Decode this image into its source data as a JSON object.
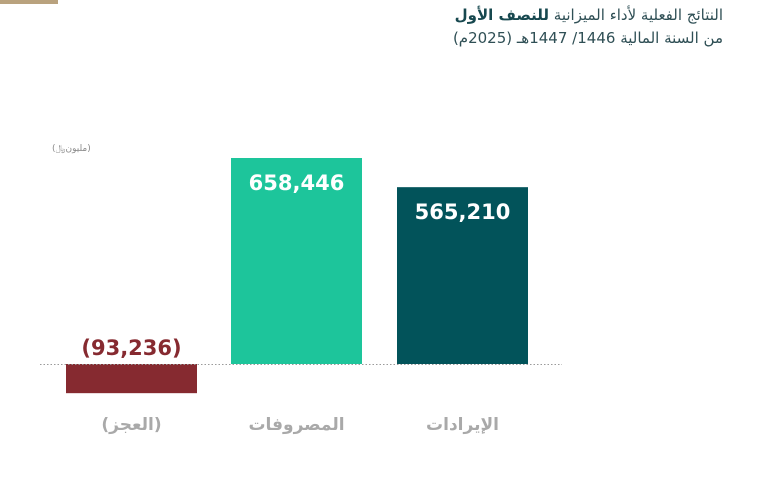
{
  "header": {
    "title_regular": "النتائج الفعلية لأداء الميزانية ",
    "title_bold": "للنصف الأول",
    "subtitle": "من السنة المالية 1446/ 1447هـ (2025م)"
  },
  "unit_label": "(مليون﷼)",
  "colors": {
    "deficit": "#862a30",
    "expenditures": "#1dc59b",
    "revenues": "#02535a",
    "baseline": "#9a9a9a"
  },
  "chart_data": {
    "type": "bar",
    "title": "",
    "unit": "(مليون﷼)",
    "categories": [
      "(العجز)",
      "المصروفات",
      "الإيرادات"
    ],
    "values": [
      -93236,
      658446,
      565210
    ],
    "value_labels": [
      "(93,236)",
      "658,446",
      "565,210"
    ],
    "ylim": [
      -100000,
      700000
    ],
    "grid": false,
    "legend": "none"
  }
}
